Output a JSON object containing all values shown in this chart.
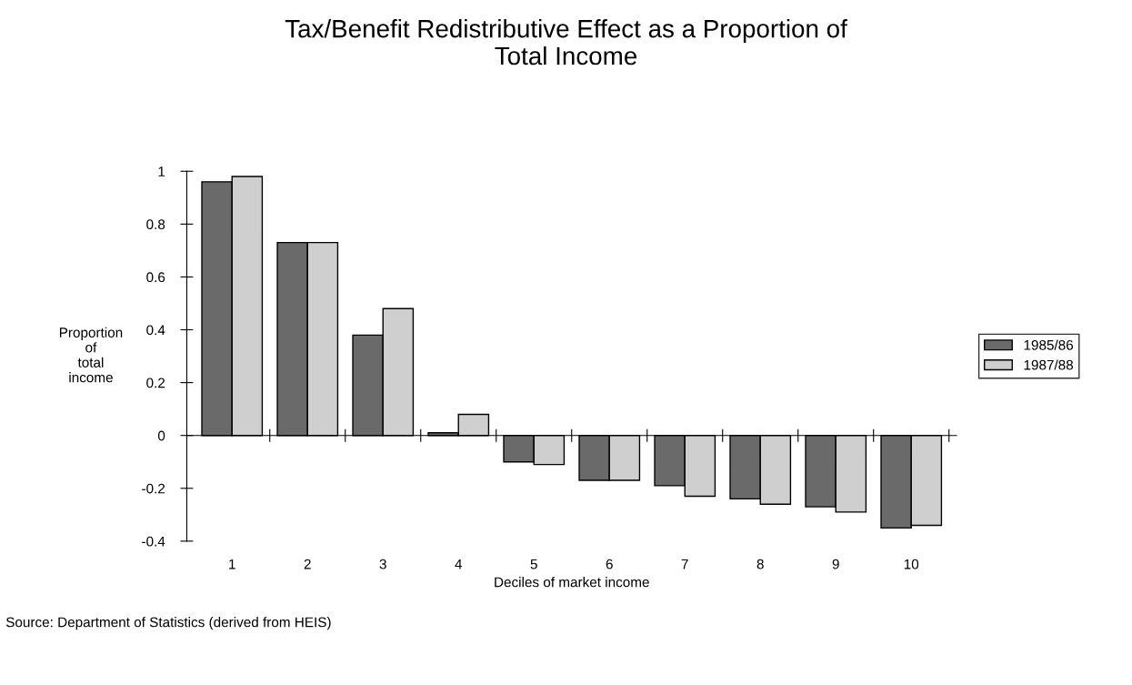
{
  "chart_data": {
    "type": "bar",
    "title": "Tax/Benefit Redistributive Effect as a Proportion of\nTotal Income",
    "xlabel": "Deciles of market income",
    "ylabel": "Proportion\nof\ntotal\nincome",
    "categories": [
      "1",
      "2",
      "3",
      "4",
      "5",
      "6",
      "7",
      "8",
      "9",
      "10"
    ],
    "series": [
      {
        "name": "1985/86",
        "color": "#6a6a6a",
        "values": [
          0.96,
          0.73,
          0.38,
          0.01,
          -0.1,
          -0.17,
          -0.19,
          -0.24,
          -0.27,
          -0.35
        ]
      },
      {
        "name": "1987/88",
        "color": "#cfcfcf",
        "values": [
          0.98,
          0.73,
          0.48,
          0.08,
          -0.11,
          -0.17,
          -0.23,
          -0.26,
          -0.29,
          -0.34
        ]
      }
    ],
    "ylim": [
      -0.4,
      1
    ],
    "yticks": [
      -0.4,
      -0.2,
      0,
      0.2,
      0.4,
      0.6,
      0.8,
      1
    ],
    "legend": "right",
    "annotations": [
      "Source: Department of Statistics (derived from HEIS)"
    ]
  }
}
